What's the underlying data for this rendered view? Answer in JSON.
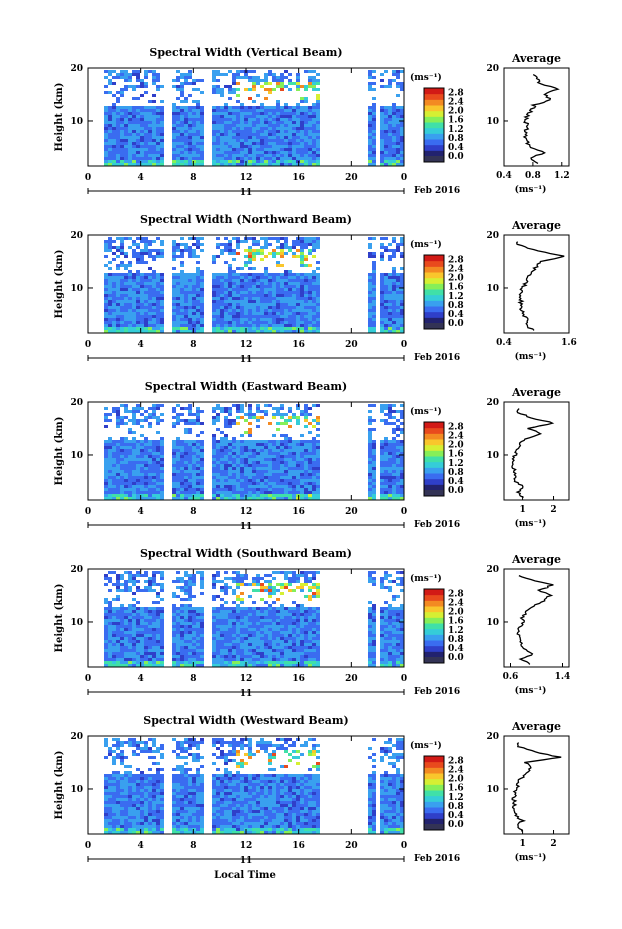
{
  "figure": {
    "xaxis_label": "Local Time",
    "date_label": "Feb 2016",
    "day_label": "11",
    "colorbar_unit": "(ms⁻¹)",
    "avg_title": "Average",
    "avg_unit": "(ms⁻¹)",
    "height_label": "Height (km)",
    "colormap": [
      "#22226e",
      "#2f3fc9",
      "#3a6cf0",
      "#39a0ef",
      "#35cdd8",
      "#40e0a8",
      "#86ef58",
      "#d6ef33",
      "#f9c62c",
      "#f38a22",
      "#e94a1d",
      "#d21a16"
    ]
  },
  "chart_data": [
    {
      "type": "heatmap",
      "title": "Spectral Width (Vertical Beam)",
      "x_ticks": [
        "0",
        "4",
        "8",
        "12",
        "16",
        "20",
        "0"
      ],
      "xlim": [
        0,
        24
      ],
      "y_ticks": [
        "10",
        "20"
      ],
      "ylim": [
        1.5,
        20
      ],
      "colorbar_ticks": [
        "0.0",
        "0.4",
        "0.8",
        "1.2",
        "1.6",
        "2.0",
        "2.4",
        "2.8"
      ],
      "colorbar_range": [
        0,
        3.0
      ],
      "data_gaps_hours": [
        [
          0,
          1.2
        ],
        [
          5.6,
          6.2
        ],
        [
          8.8,
          9.3
        ],
        [
          17.5,
          21.1
        ],
        [
          21.7,
          22.1
        ]
      ],
      "data_top_km": 19.5,
      "typical_width_ms": 0.8,
      "average_profile": {
        "xlim": [
          0.4,
          1.3
        ],
        "x_ticks": [
          "0.4",
          "0.8",
          "1.2"
        ],
        "height_km": [
          2,
          3,
          4,
          5,
          6,
          7,
          8,
          9,
          10,
          11,
          12,
          13,
          14,
          15,
          16,
          17,
          18,
          19
        ],
        "width_ms": [
          0.85,
          0.75,
          0.95,
          0.78,
          0.72,
          0.7,
          0.7,
          0.72,
          0.7,
          0.72,
          0.78,
          0.82,
          1.05,
          0.95,
          1.15,
          0.9,
          0.85,
          0.82
        ]
      }
    },
    {
      "type": "heatmap",
      "title": "Spectral Width (Northward Beam)",
      "x_ticks": [
        "0",
        "4",
        "8",
        "12",
        "16",
        "20",
        "0"
      ],
      "xlim": [
        0,
        24
      ],
      "y_ticks": [
        "10",
        "20"
      ],
      "ylim": [
        1.5,
        20
      ],
      "colorbar_ticks": [
        "0.0",
        "0.4",
        "0.8",
        "1.2",
        "1.6",
        "2.0",
        "2.4",
        "2.8"
      ],
      "colorbar_range": [
        0,
        3.0
      ],
      "data_gaps_hours": [
        [
          0,
          1.2
        ],
        [
          5.6,
          6.2
        ],
        [
          8.8,
          9.3
        ],
        [
          17.5,
          21.1
        ],
        [
          21.7,
          22.1
        ]
      ],
      "data_top_km": 19.5,
      "typical_width_ms": 0.8,
      "average_profile": {
        "xlim": [
          0.4,
          1.6
        ],
        "x_ticks": [
          "0.4",
          "1.6"
        ],
        "height_km": [
          2,
          3,
          4,
          5,
          6,
          7,
          8,
          9,
          10,
          11,
          12,
          13,
          14,
          15,
          16,
          17,
          18,
          19
        ],
        "width_ms": [
          0.95,
          0.8,
          0.85,
          0.75,
          0.72,
          0.7,
          0.72,
          0.7,
          0.75,
          0.8,
          0.85,
          0.9,
          1.0,
          1.1,
          1.5,
          1.0,
          0.7,
          0.6
        ]
      }
    },
    {
      "type": "heatmap",
      "title": "Spectral Width (Eastward Beam)",
      "x_ticks": [
        "0",
        "4",
        "8",
        "12",
        "16",
        "20",
        "0"
      ],
      "xlim": [
        0,
        24
      ],
      "y_ticks": [
        "10",
        "20"
      ],
      "ylim": [
        1.5,
        20
      ],
      "colorbar_ticks": [
        "0.0",
        "0.4",
        "0.8",
        "1.2",
        "1.6",
        "2.0",
        "2.4",
        "2.8"
      ],
      "colorbar_range": [
        0,
        3.0
      ],
      "data_gaps_hours": [
        [
          0,
          1.2
        ],
        [
          5.6,
          6.2
        ],
        [
          8.8,
          9.3
        ],
        [
          17.5,
          21.1
        ],
        [
          21.7,
          22.1
        ]
      ],
      "data_top_km": 19.5,
      "typical_width_ms": 0.8,
      "average_profile": {
        "xlim": [
          0.4,
          2.5
        ],
        "x_ticks": [
          "1",
          "2"
        ],
        "height_km": [
          2,
          3,
          4,
          5,
          6,
          7,
          8,
          9,
          10,
          11,
          12,
          13,
          14,
          15,
          16,
          17,
          18,
          19
        ],
        "width_ms": [
          1.0,
          0.85,
          1.0,
          0.8,
          0.75,
          0.72,
          0.7,
          0.72,
          0.75,
          0.8,
          0.9,
          1.1,
          1.6,
          1.2,
          2.0,
          1.3,
          0.9,
          0.8
        ]
      }
    },
    {
      "type": "heatmap",
      "title": "Spectral Width (Southward Beam)",
      "x_ticks": [
        "0",
        "4",
        "8",
        "12",
        "16",
        "20",
        "0"
      ],
      "xlim": [
        0,
        24
      ],
      "y_ticks": [
        "10",
        "20"
      ],
      "ylim": [
        1.5,
        20
      ],
      "colorbar_ticks": [
        "0.0",
        "0.4",
        "0.8",
        "1.2",
        "1.6",
        "2.0",
        "2.4",
        "2.8"
      ],
      "colorbar_range": [
        0,
        3.0
      ],
      "data_gaps_hours": [
        [
          0,
          1.2
        ],
        [
          5.6,
          6.2
        ],
        [
          8.8,
          9.3
        ],
        [
          17.5,
          21.1
        ],
        [
          21.7,
          22.1
        ]
      ],
      "data_top_km": 19.5,
      "typical_width_ms": 0.8,
      "average_profile": {
        "xlim": [
          0.5,
          1.5
        ],
        "x_ticks": [
          "0.6",
          "1.4"
        ],
        "height_km": [
          2,
          3,
          4,
          5,
          6,
          7,
          8,
          9,
          10,
          11,
          12,
          13,
          14,
          15,
          16,
          17,
          18,
          19
        ],
        "width_ms": [
          0.9,
          0.75,
          0.95,
          0.8,
          0.75,
          0.72,
          0.72,
          0.75,
          0.8,
          0.78,
          0.85,
          0.95,
          1.1,
          1.2,
          1.05,
          1.25,
          0.9,
          0.7
        ]
      }
    },
    {
      "type": "heatmap",
      "title": "Spectral Width (Westward Beam)",
      "x_ticks": [
        "0",
        "4",
        "8",
        "12",
        "16",
        "20",
        "0"
      ],
      "xlim": [
        0,
        24
      ],
      "y_ticks": [
        "10",
        "20"
      ],
      "ylim": [
        1.5,
        20
      ],
      "colorbar_ticks": [
        "0.0",
        "0.4",
        "0.8",
        "1.2",
        "1.6",
        "2.0",
        "2.4",
        "2.8"
      ],
      "colorbar_range": [
        0,
        3.0
      ],
      "data_gaps_hours": [
        [
          0,
          1.2
        ],
        [
          5.6,
          6.2
        ],
        [
          8.8,
          9.3
        ],
        [
          17.5,
          21.1
        ],
        [
          21.7,
          22.1
        ]
      ],
      "data_top_km": 19.5,
      "typical_width_ms": 0.8,
      "average_profile": {
        "xlim": [
          0.4,
          2.5
        ],
        "x_ticks": [
          "1",
          "2"
        ],
        "height_km": [
          2,
          3,
          4,
          5,
          6,
          7,
          8,
          9,
          10,
          11,
          12,
          13,
          14,
          15,
          16,
          17,
          18,
          19
        ],
        "width_ms": [
          1.0,
          0.8,
          1.0,
          0.8,
          0.75,
          0.72,
          0.72,
          0.75,
          0.8,
          0.85,
          0.95,
          1.1,
          1.3,
          1.1,
          2.2,
          1.4,
          0.9,
          0.8
        ]
      }
    }
  ]
}
